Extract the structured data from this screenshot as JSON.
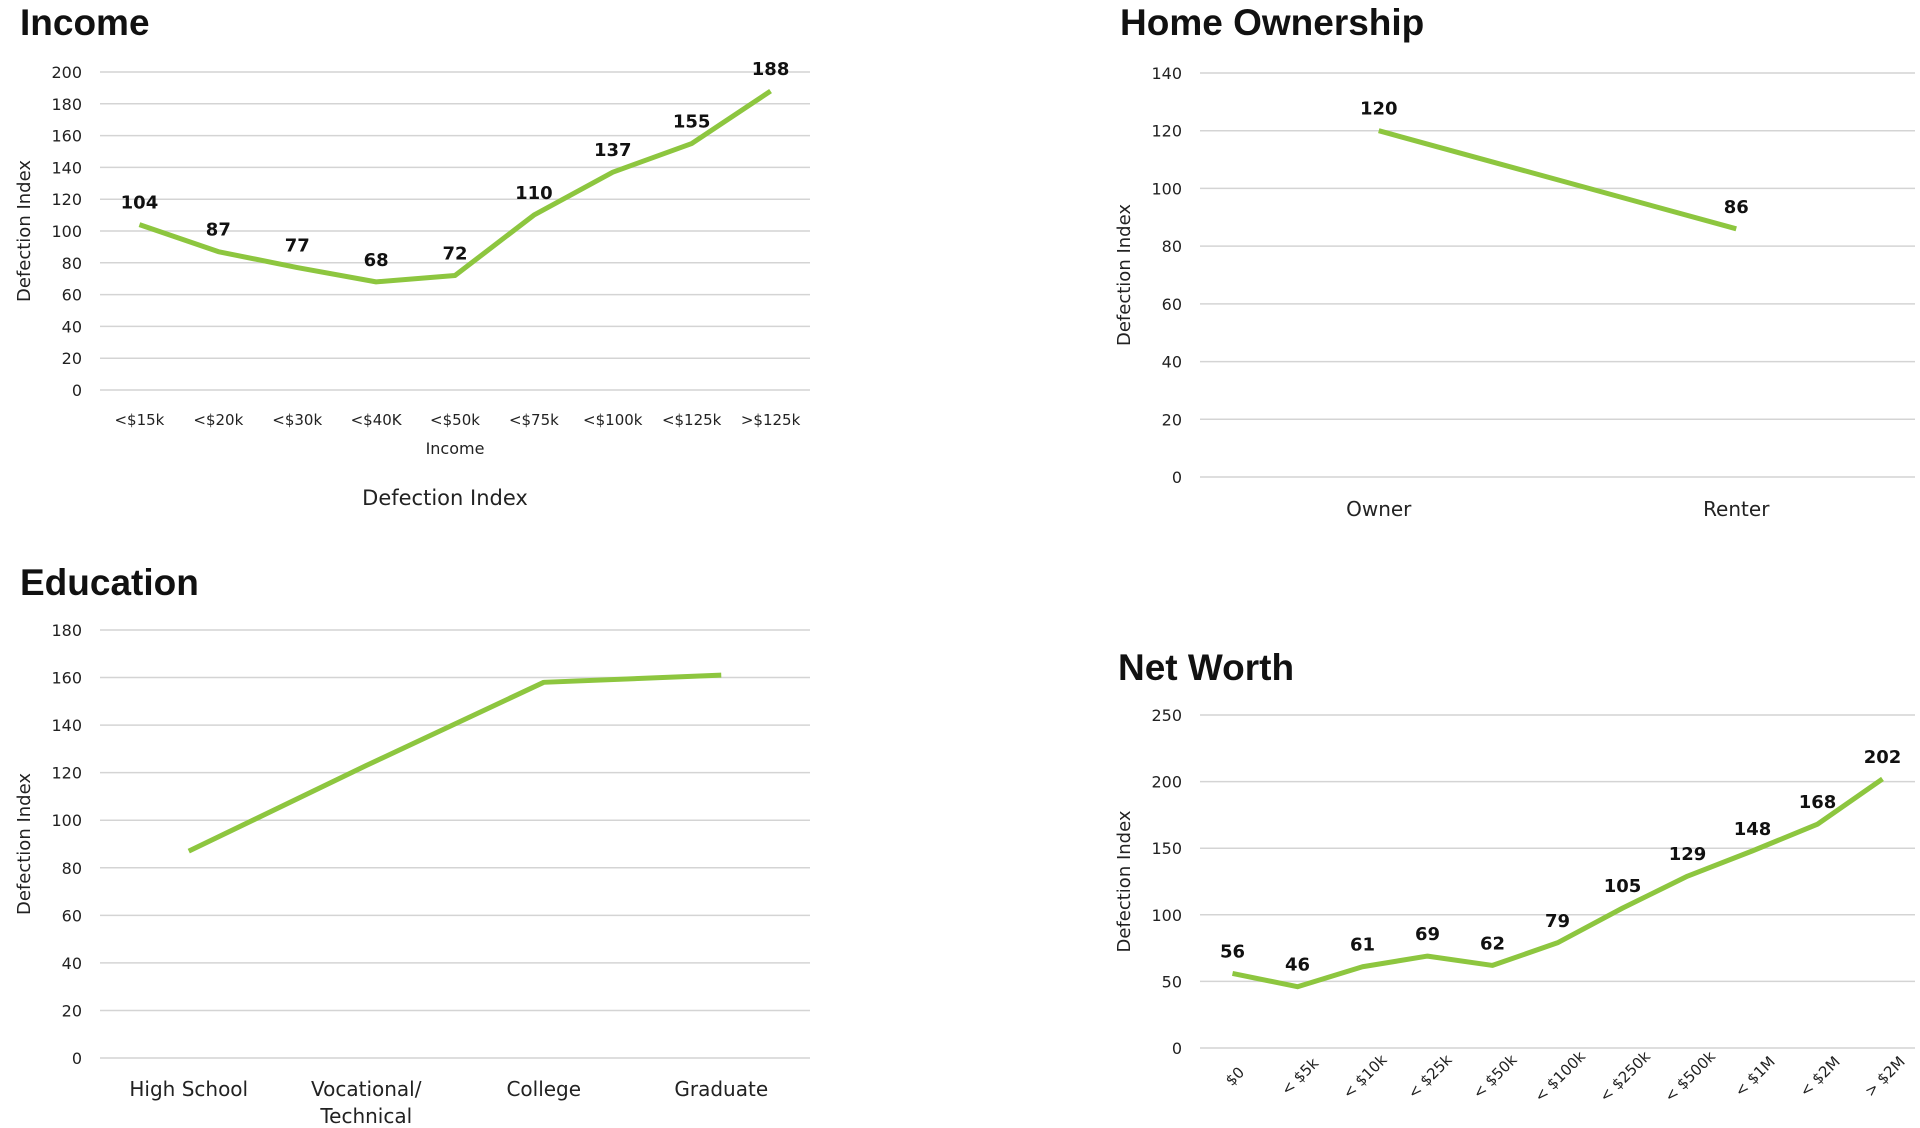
{
  "colors": {
    "line": "#8dc63f",
    "grid": "#d4d4d4"
  },
  "chart_data": [
    {
      "id": "income",
      "type": "line",
      "title": "Income",
      "xlabel": "Income",
      "ylabel": "Defection Index",
      "legend_text": "Defection Index",
      "categories": [
        "<$15k",
        "<$20k",
        "<$30k",
        "<$40K",
        "<$50k",
        "<$75k",
        "<$100k",
        "<$125k",
        ">$125k"
      ],
      "series": [
        {
          "values": [
            104,
            87,
            77,
            68,
            72,
            110,
            137,
            155,
            188
          ]
        }
      ],
      "data_labels": [
        "104",
        "87",
        "77",
        "68",
        "72",
        "110",
        "137",
        "155",
        "188"
      ],
      "yticks": [
        0,
        20,
        40,
        60,
        80,
        100,
        120,
        140,
        160,
        180,
        200
      ],
      "ylim": [
        0,
        200
      ],
      "grid": true
    },
    {
      "id": "home",
      "type": "line",
      "title": "Home Ownership",
      "xlabel": "",
      "ylabel": "Defection Index",
      "categories": [
        "Owner",
        "Renter"
      ],
      "series": [
        {
          "values": [
            120,
            86
          ]
        }
      ],
      "data_labels": [
        "120",
        "86"
      ],
      "yticks": [
        0,
        20,
        40,
        60,
        80,
        100,
        120,
        140
      ],
      "ylim": [
        0,
        140
      ],
      "grid": true
    },
    {
      "id": "education",
      "type": "line",
      "title": "Education",
      "xlabel": "",
      "ylabel": "Defection Index",
      "categories": [
        "High School",
        "Vocational/ Technical",
        "College",
        "Graduate"
      ],
      "series": [
        {
          "values": [
            87,
            123,
            158,
            161
          ]
        }
      ],
      "data_labels": [],
      "yticks": [
        0,
        20,
        40,
        60,
        80,
        100,
        120,
        140,
        160,
        180
      ],
      "ylim": [
        0,
        180
      ],
      "grid": true
    },
    {
      "id": "networth",
      "type": "line",
      "title": "Net Worth",
      "xlabel": "",
      "ylabel": "Defection Index",
      "categories": [
        "$0",
        "< $5k",
        "< $10k",
        "< $25k",
        "< $50k",
        "< $100k",
        "< $250k",
        "< $500k",
        "< $1M",
        "< $2M",
        "> $2M"
      ],
      "series": [
        {
          "values": [
            56,
            46,
            61,
            69,
            62,
            79,
            105,
            129,
            148,
            168,
            202
          ]
        }
      ],
      "data_labels": [
        "56",
        "46",
        "61",
        "69",
        "62",
        "79",
        "105",
        "129",
        "148",
        "168",
        "202"
      ],
      "yticks": [
        0,
        50,
        100,
        150,
        200,
        250
      ],
      "ylim": [
        0,
        250
      ],
      "grid": true
    }
  ]
}
